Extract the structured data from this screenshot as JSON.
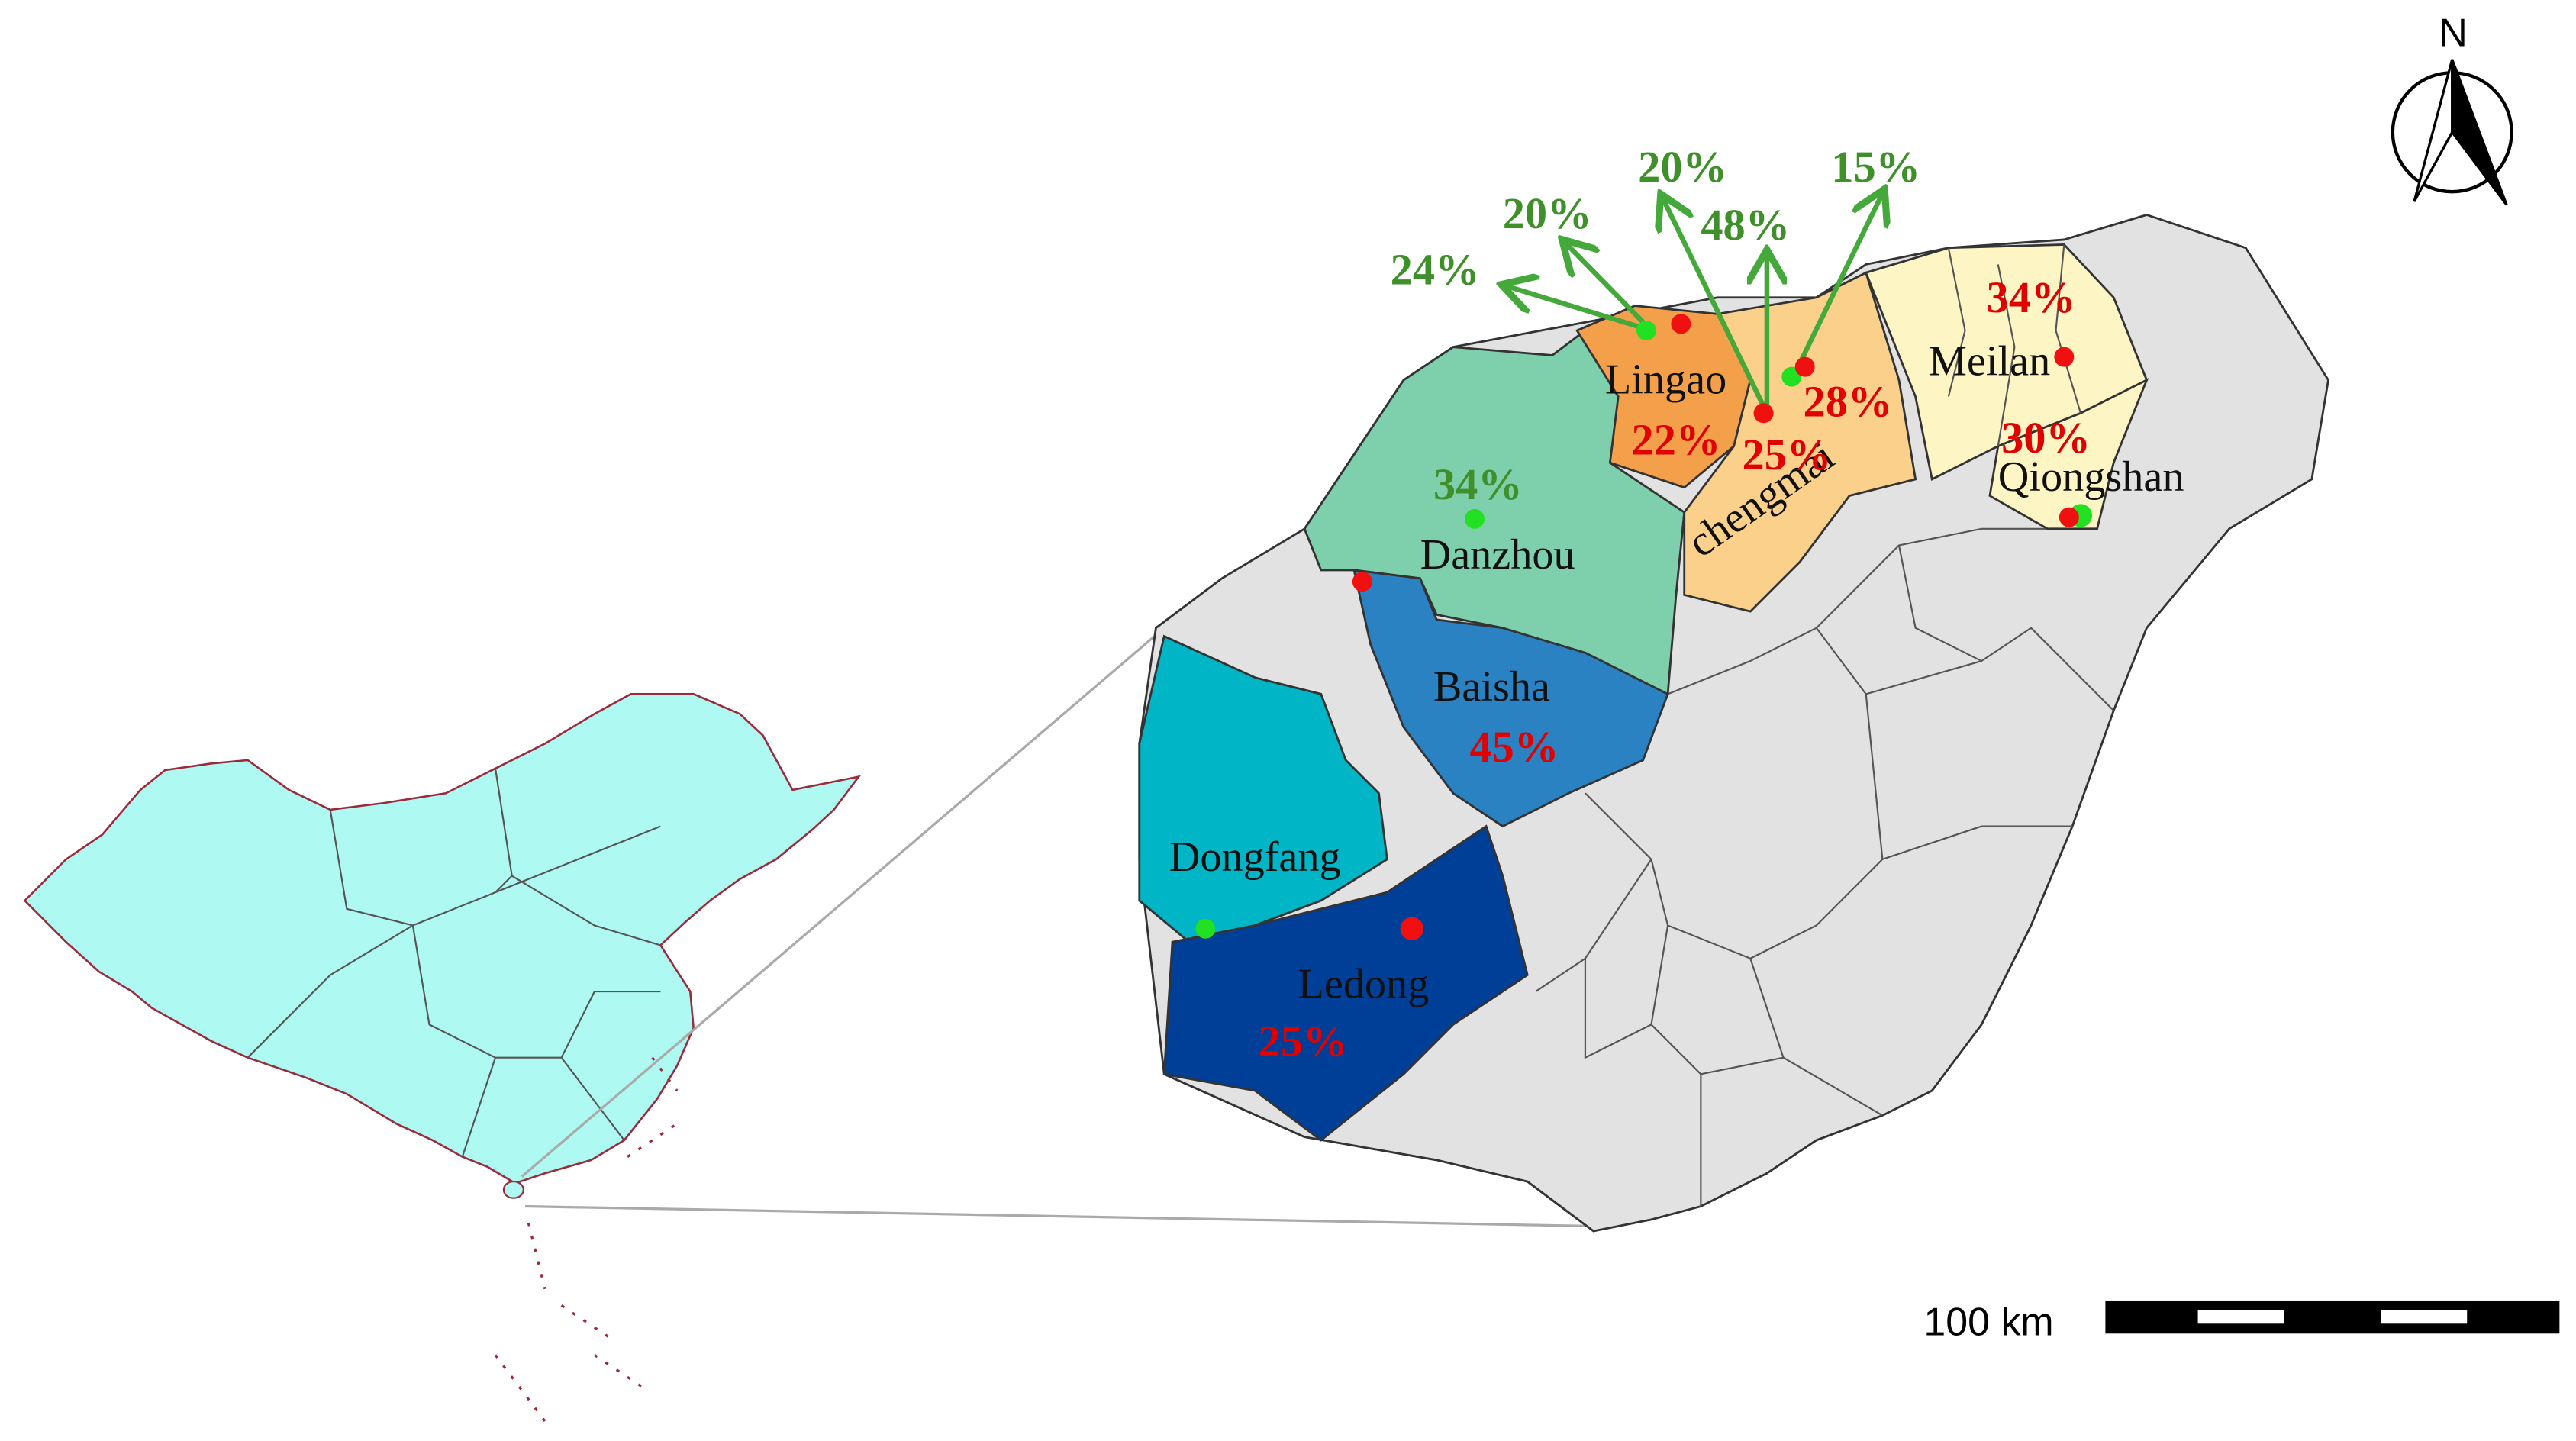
{
  "north_label": "N",
  "scale_bar": {
    "label": "100 km"
  },
  "region_names": [
    "Lingao",
    "chengmai",
    "Meilan",
    "Qiongshan",
    "Danzhou",
    "Baisha",
    "Dongfang",
    "Ledong"
  ],
  "red_percentages": [
    "34%",
    "28%",
    "22%",
    "25%",
    "30%",
    "45%",
    "25%"
  ],
  "green_percentages": [
    "24%",
    "20%",
    "20%",
    "48%",
    "15%",
    "34%"
  ]
}
